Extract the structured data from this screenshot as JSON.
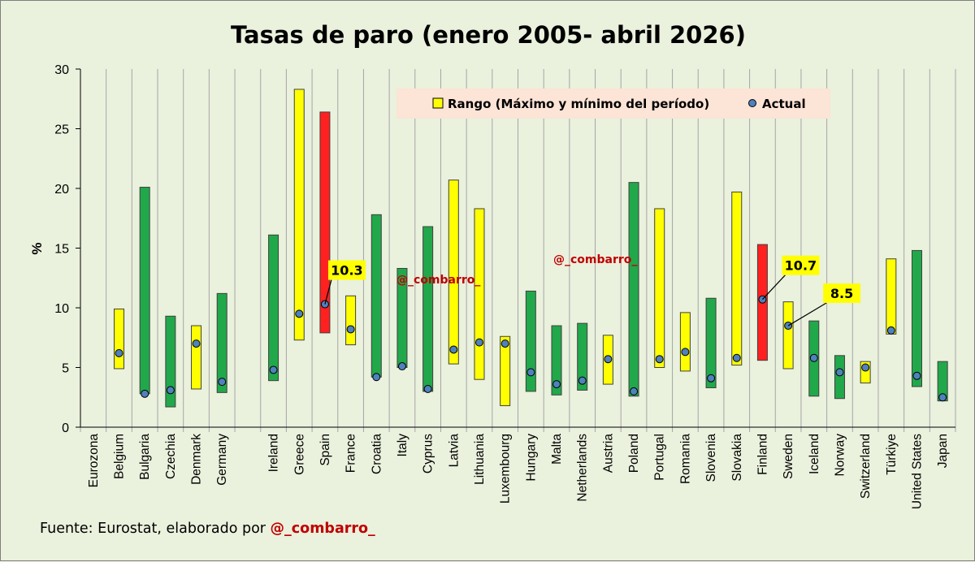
{
  "chart_data": {
    "type": "bar",
    "subtype": "floating-range-with-point",
    "title": "Tasas de paro (enero 2005- abril 2026)",
    "ylabel": "%",
    "xlabel": "",
    "ylim": [
      0,
      30
    ],
    "yticks": [
      0,
      5,
      10,
      15,
      20,
      25,
      30
    ],
    "grid": "vertical category dividers",
    "legend": {
      "position": "top-right",
      "range_label": "Rango (Máximo y mínimo del período)",
      "actual_label": "Actual"
    },
    "colors": {
      "yellow": "#ffff00",
      "green": "#21a84a",
      "red": "#ff2020",
      "dot": "#4f81bd",
      "legend_bg": "#fce4d6",
      "plot_bg": "#eaf1dd"
    },
    "categories": [
      "Eurozona",
      "Belgium",
      "Bulgaria",
      "Czechia",
      "Denmark",
      "Germany",
      "",
      "Ireland",
      "Greece",
      "Spain",
      "France",
      "Croatia",
      "Italy",
      "Cyprus",
      "Latvia",
      "Lithuania",
      "Luxembourg",
      "Hungary",
      "Malta",
      "Netherlands",
      "Austria",
      "Poland",
      "Portugal",
      "Romania",
      "Slovenia",
      "Slovakia",
      "Finland",
      "Sweden",
      "Iceland",
      "Norway",
      "Switzerland",
      "Türkiye",
      "United States",
      "Japan"
    ],
    "series": [
      {
        "name": "Rango (Máximo y mínimo del período)",
        "min": [
          null,
          4.9,
          2.8,
          1.7,
          3.2,
          2.9,
          null,
          3.9,
          7.3,
          7.9,
          6.9,
          4.2,
          5.0,
          3.0,
          5.3,
          4.0,
          1.8,
          3.0,
          2.7,
          3.1,
          3.6,
          2.6,
          5.0,
          4.7,
          3.3,
          5.2,
          5.6,
          4.9,
          2.6,
          2.4,
          3.7,
          7.8,
          3.4,
          2.2
        ],
        "max": [
          null,
          9.9,
          20.1,
          9.3,
          8.5,
          11.2,
          null,
          16.1,
          28.3,
          26.4,
          11.0,
          17.8,
          13.3,
          16.8,
          20.7,
          18.3,
          7.6,
          11.4,
          8.5,
          8.7,
          7.7,
          20.5,
          18.3,
          9.6,
          10.8,
          19.7,
          15.3,
          10.5,
          8.9,
          6.0,
          5.5,
          14.1,
          14.8,
          5.5
        ],
        "colors": [
          null,
          "yellow",
          "green",
          "green",
          "yellow",
          "green",
          null,
          "green",
          "yellow",
          "red",
          "yellow",
          "green",
          "green",
          "green",
          "yellow",
          "yellow",
          "yellow",
          "green",
          "green",
          "green",
          "yellow",
          "green",
          "yellow",
          "yellow",
          "green",
          "yellow",
          "red",
          "yellow",
          "green",
          "green",
          "yellow",
          "yellow",
          "green",
          "green"
        ]
      },
      {
        "name": "Actual",
        "values": [
          null,
          6.2,
          2.8,
          3.1,
          7.0,
          3.8,
          null,
          4.8,
          9.5,
          10.3,
          8.2,
          4.2,
          5.1,
          3.2,
          6.5,
          7.1,
          7.0,
          4.6,
          3.6,
          3.9,
          5.7,
          3.0,
          5.7,
          6.3,
          4.1,
          5.8,
          10.7,
          8.5,
          5.8,
          4.6,
          5.0,
          8.1,
          4.3,
          2.5
        ]
      }
    ],
    "annotations": [
      {
        "category": "Spain",
        "label": "10.3"
      },
      {
        "category": "Finland",
        "label": "10.7"
      },
      {
        "category": "Sweden",
        "label": "8.5"
      }
    ],
    "watermarks": [
      "@_combarro_",
      "@_combarro_"
    ],
    "source_prefix": "Fuente: Eurostat, elaborado por ",
    "source_handle": "@_combarro_"
  }
}
